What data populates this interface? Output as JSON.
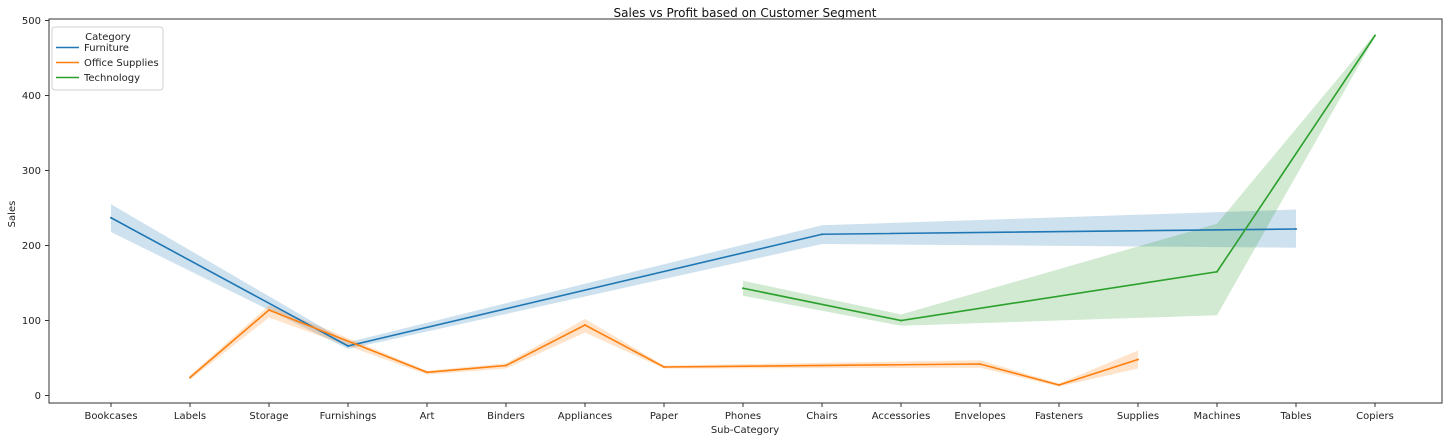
{
  "chart_data": {
    "type": "line",
    "title": "Sales vs Profit based on Customer Segment",
    "xlabel": "Sub-Category",
    "ylabel": "Sales",
    "ylim": [
      -10,
      502
    ],
    "yticks": [
      0,
      100,
      200,
      300,
      400,
      500
    ],
    "grid": false,
    "legend": {
      "title": "Category",
      "placement": "top-left"
    },
    "categories": [
      "Bookcases",
      "Labels",
      "Storage",
      "Furnishings",
      "Art",
      "Binders",
      "Appliances",
      "Paper",
      "Phones",
      "Chairs",
      "Accessories",
      "Envelopes",
      "Fasteners",
      "Supplies",
      "Machines",
      "Tables",
      "Copiers"
    ],
    "series": [
      {
        "name": "Furniture",
        "color": "#1f77b4",
        "points": [
          {
            "x": "Bookcases",
            "y": 237,
            "lo": 218,
            "hi": 255
          },
          {
            "x": "Furnishings",
            "y": 66,
            "lo": 62,
            "hi": 71
          },
          {
            "x": "Chairs",
            "y": 215,
            "lo": 202,
            "hi": 227
          },
          {
            "x": "Tables",
            "y": 222,
            "lo": 197,
            "hi": 248
          }
        ]
      },
      {
        "name": "Office Supplies",
        "color": "#ff7f0e",
        "points": [
          {
            "x": "Labels",
            "y": 24,
            "lo": 21,
            "hi": 27
          },
          {
            "x": "Storage",
            "y": 114,
            "lo": 104,
            "hi": 120
          },
          {
            "x": "Art",
            "y": 31,
            "lo": 28,
            "hi": 33
          },
          {
            "x": "Binders",
            "y": 40,
            "lo": 36,
            "hi": 43
          },
          {
            "x": "Appliances",
            "y": 94,
            "lo": 84,
            "hi": 102
          },
          {
            "x": "Paper",
            "y": 38,
            "lo": 36,
            "hi": 40
          },
          {
            "x": "Envelopes",
            "y": 42,
            "lo": 37,
            "hi": 47
          },
          {
            "x": "Fasteners",
            "y": 14,
            "lo": 12,
            "hi": 16
          },
          {
            "x": "Supplies",
            "y": 48,
            "lo": 36,
            "hi": 60
          }
        ]
      },
      {
        "name": "Technology",
        "color": "#2ca02c",
        "points": [
          {
            "x": "Phones",
            "y": 143,
            "lo": 133,
            "hi": 153
          },
          {
            "x": "Accessories",
            "y": 100,
            "lo": 93,
            "hi": 108
          },
          {
            "x": "Machines",
            "y": 165,
            "lo": 107,
            "hi": 229
          },
          {
            "x": "Copiers",
            "y": 480,
            "lo": 478,
            "hi": 482
          }
        ]
      }
    ]
  }
}
